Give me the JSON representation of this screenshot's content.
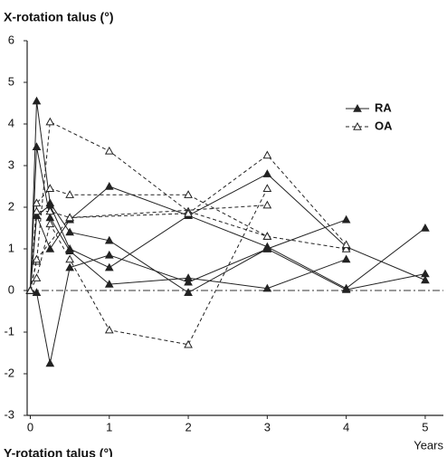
{
  "chart_data": {
    "type": "line",
    "title": "X-rotation talus (°)",
    "next_title": "Y-rotation talus (°)",
    "x_label": "Years",
    "xlim": [
      -0.04,
      5.23
    ],
    "ylim": [
      -3,
      6
    ],
    "xticks": [
      0,
      1,
      2,
      3,
      4,
      5
    ],
    "yticks": [
      -3,
      -2,
      -1,
      0,
      1,
      2,
      3,
      4,
      5,
      6
    ],
    "hline": 0,
    "legend": "upper right",
    "series": [
      {
        "name": "RA",
        "color": "#222222",
        "dashed": false,
        "filled": true,
        "patients": [
          {
            "x": [
              0,
              0.08,
              0.25,
              0.5,
              1,
              2,
              3,
              4
            ],
            "values": [
              0,
              4.55,
              2.1,
              1.4,
              1.2,
              -0.05,
              1.0,
              1.7
            ]
          },
          {
            "x": [
              0,
              0.08,
              0.25,
              0.5,
              1,
              2,
              3,
              4
            ],
            "values": [
              0,
              3.45,
              1.75,
              0.95,
              0.15,
              0.3,
              0.05,
              0.75
            ]
          },
          {
            "x": [
              0,
              0.08,
              0.25,
              0.5,
              1,
              2,
              3,
              4,
              5
            ],
            "values": [
              0,
              -0.05,
              -1.75,
              0.55,
              0.85,
              0.2,
              1.0,
              0.02,
              0.4
            ]
          },
          {
            "x": [
              0,
              0.08,
              0.25,
              0.5,
              1,
              2,
              3,
              4,
              5
            ],
            "values": [
              0,
              1.8,
              1.0,
              1.7,
              2.5,
              1.8,
              1.05,
              0.05,
              1.5
            ]
          },
          {
            "x": [
              0,
              0.08,
              0.25,
              0.5,
              1,
              2,
              3,
              4,
              5
            ],
            "values": [
              0,
              1.8,
              2.05,
              1.0,
              0.55,
              1.8,
              2.8,
              1.05,
              0.25
            ]
          }
        ]
      },
      {
        "name": "OA",
        "color": "#222222",
        "dashed": true,
        "filled": false,
        "patients": [
          {
            "x": [
              0,
              0.08,
              0.25,
              1,
              2,
              3,
              4
            ],
            "values": [
              0,
              0.7,
              4.05,
              3.35,
              1.9,
              1.3,
              1.0
            ]
          },
          {
            "x": [
              0,
              0.08,
              0.25,
              0.5,
              2,
              3
            ],
            "values": [
              0,
              2.1,
              2.45,
              2.3,
              2.3,
              1.3
            ]
          },
          {
            "x": [
              0,
              0.08,
              0.25,
              0.5,
              1,
              2,
              3
            ],
            "values": [
              0,
              0.3,
              1.6,
              0.75,
              -0.95,
              -1.3,
              2.45
            ]
          },
          {
            "x": [
              0,
              0.08,
              0.25,
              0.5,
              3
            ],
            "values": [
              0,
              1.9,
              1.9,
              1.75,
              2.05
            ]
          },
          {
            "x": [
              0,
              0.08,
              0.5,
              2,
              3,
              4
            ],
            "values": [
              0,
              0.75,
              1.75,
              1.85,
              3.25,
              1.1
            ]
          }
        ]
      }
    ]
  }
}
